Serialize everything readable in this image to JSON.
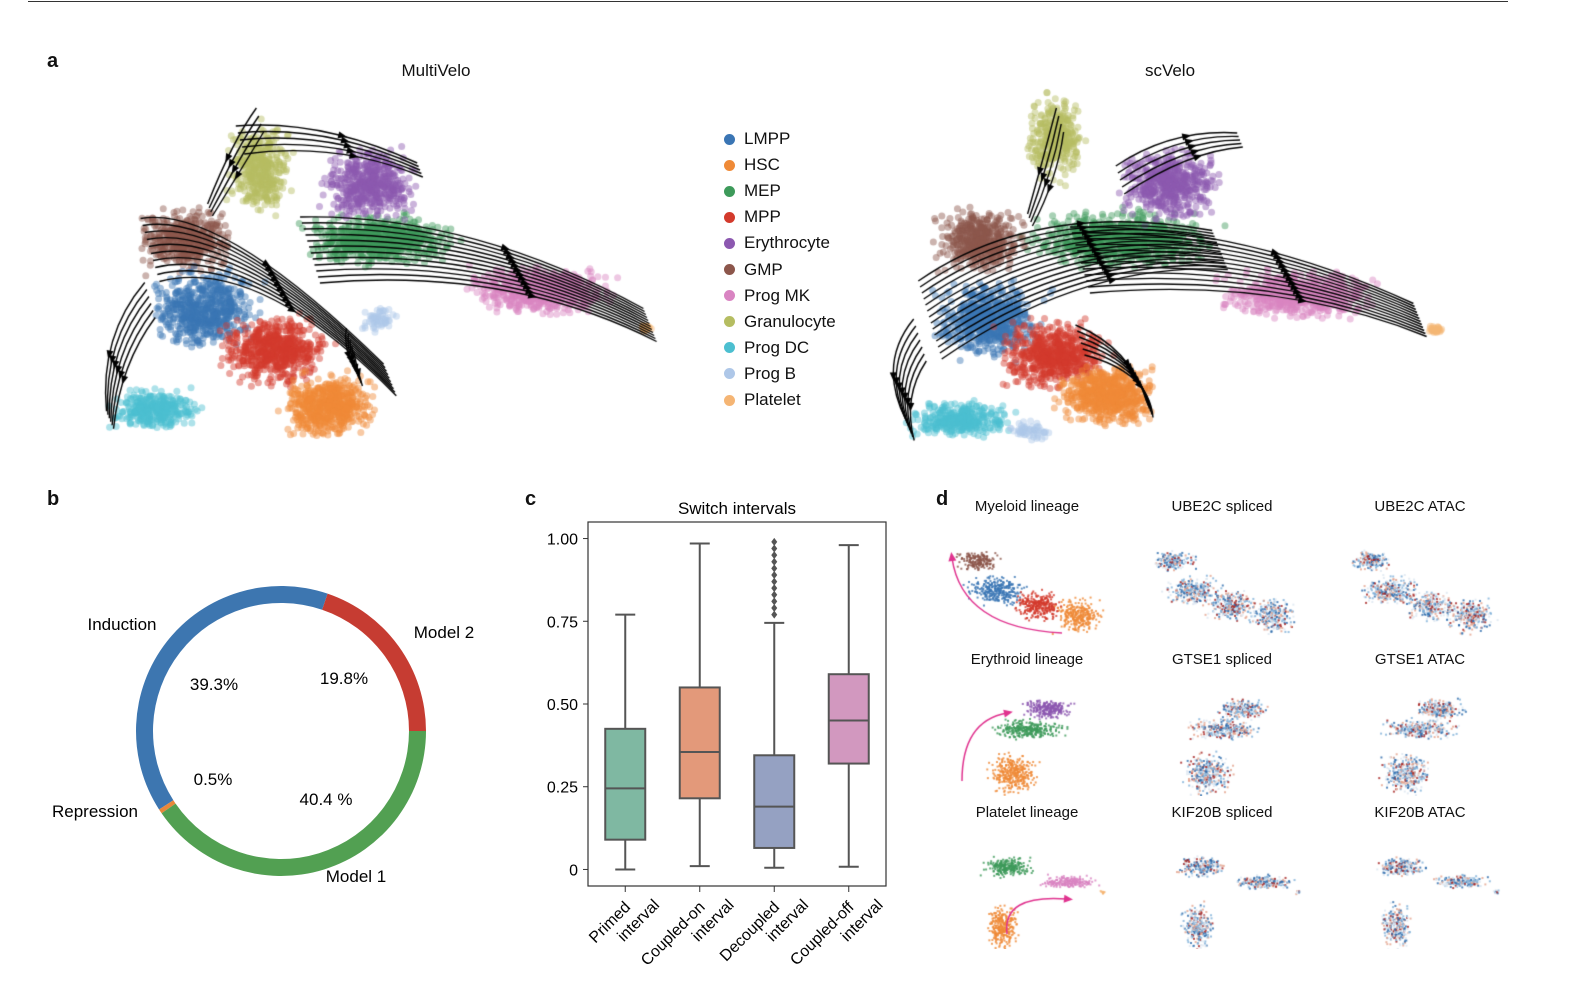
{
  "panel_labels": {
    "a": "a",
    "b": "b",
    "c": "c",
    "d": "d"
  },
  "panel_a": {
    "titles": [
      "MultiVelo",
      "scVelo"
    ],
    "legend": [
      {
        "label": "LMPP",
        "color": "#3a75b4"
      },
      {
        "label": "HSC",
        "color": "#ef8a37"
      },
      {
        "label": "MEP",
        "color": "#3d9a5a"
      },
      {
        "label": "MPP",
        "color": "#d33a2c"
      },
      {
        "label": "Erythrocyte",
        "color": "#8c58b0"
      },
      {
        "label": "GMP",
        "color": "#8c564b"
      },
      {
        "label": "Prog MK",
        "color": "#d984c2"
      },
      {
        "label": "Granulocyte",
        "color": "#b5bd61"
      },
      {
        "label": "Prog DC",
        "color": "#4cbfd0"
      },
      {
        "label": "Prog B",
        "color": "#aec7e8"
      },
      {
        "label": "Platelet",
        "color": "#f5b574"
      }
    ]
  },
  "chart_data": [
    {
      "type": "pie",
      "donut": true,
      "slices": [
        {
          "label": "Model 2",
          "value": 19.8,
          "value_label": "19.8%",
          "color": "#c63c32"
        },
        {
          "label": "Induction",
          "value": 39.3,
          "value_label": "39.3%",
          "color": "#3d76b0"
        },
        {
          "label": "Repression",
          "value": 0.5,
          "value_label": "0.5%",
          "color": "#e8873a"
        },
        {
          "label": "Model 1",
          "value": 40.4,
          "value_label": "40.4 %",
          "color": "#52a052"
        }
      ]
    },
    {
      "type": "box",
      "title": "Switch intervals",
      "ylim": [
        -0.05,
        1.05
      ],
      "yticks": [
        {
          "v": 0,
          "label": "0"
        },
        {
          "v": 0.25,
          "label": "0.25"
        },
        {
          "v": 0.5,
          "label": "0.50"
        },
        {
          "v": 0.75,
          "label": "0.75"
        },
        {
          "v": 1.0,
          "label": "1.00"
        }
      ],
      "categories": [
        "Primed interval",
        "Coupled-on interval",
        "Decoupled interval",
        "Coupled-off interval"
      ],
      "category_lines": [
        [
          "Primed",
          "interval"
        ],
        [
          "Coupled-on",
          "interval"
        ],
        [
          "Decoupled",
          "interval"
        ],
        [
          "Coupled-off",
          "interval"
        ]
      ],
      "boxes": [
        {
          "min": 0.0,
          "q1": 0.09,
          "median": 0.245,
          "q3": 0.425,
          "max": 0.77,
          "color": "#7fb8a2",
          "outliers": []
        },
        {
          "min": 0.01,
          "q1": 0.215,
          "median": 0.355,
          "q3": 0.55,
          "max": 0.985,
          "color": "#e3997a",
          "outliers": []
        },
        {
          "min": 0.005,
          "q1": 0.065,
          "median": 0.19,
          "q3": 0.345,
          "max": 0.745,
          "color": "#95a1c2",
          "outliers": [
            0.77,
            0.79,
            0.81,
            0.83,
            0.85,
            0.87,
            0.89,
            0.91,
            0.93,
            0.95,
            0.97,
            0.99
          ]
        },
        {
          "min": 0.008,
          "q1": 0.32,
          "median": 0.45,
          "q3": 0.59,
          "max": 0.98,
          "color": "#d298bf",
          "outliers": []
        }
      ]
    }
  ],
  "panel_d": {
    "titles": [
      [
        "Myeloid lineage",
        "UBE2C spliced",
        "UBE2C ATAC"
      ],
      [
        "Erythroid lineage",
        "GTSE1 spliced",
        "GTSE1 ATAC"
      ],
      [
        "Platelet lineage",
        "KIF20B spliced",
        "KIF20B ATAC"
      ]
    ],
    "arrow_color": "#e0338f"
  }
}
